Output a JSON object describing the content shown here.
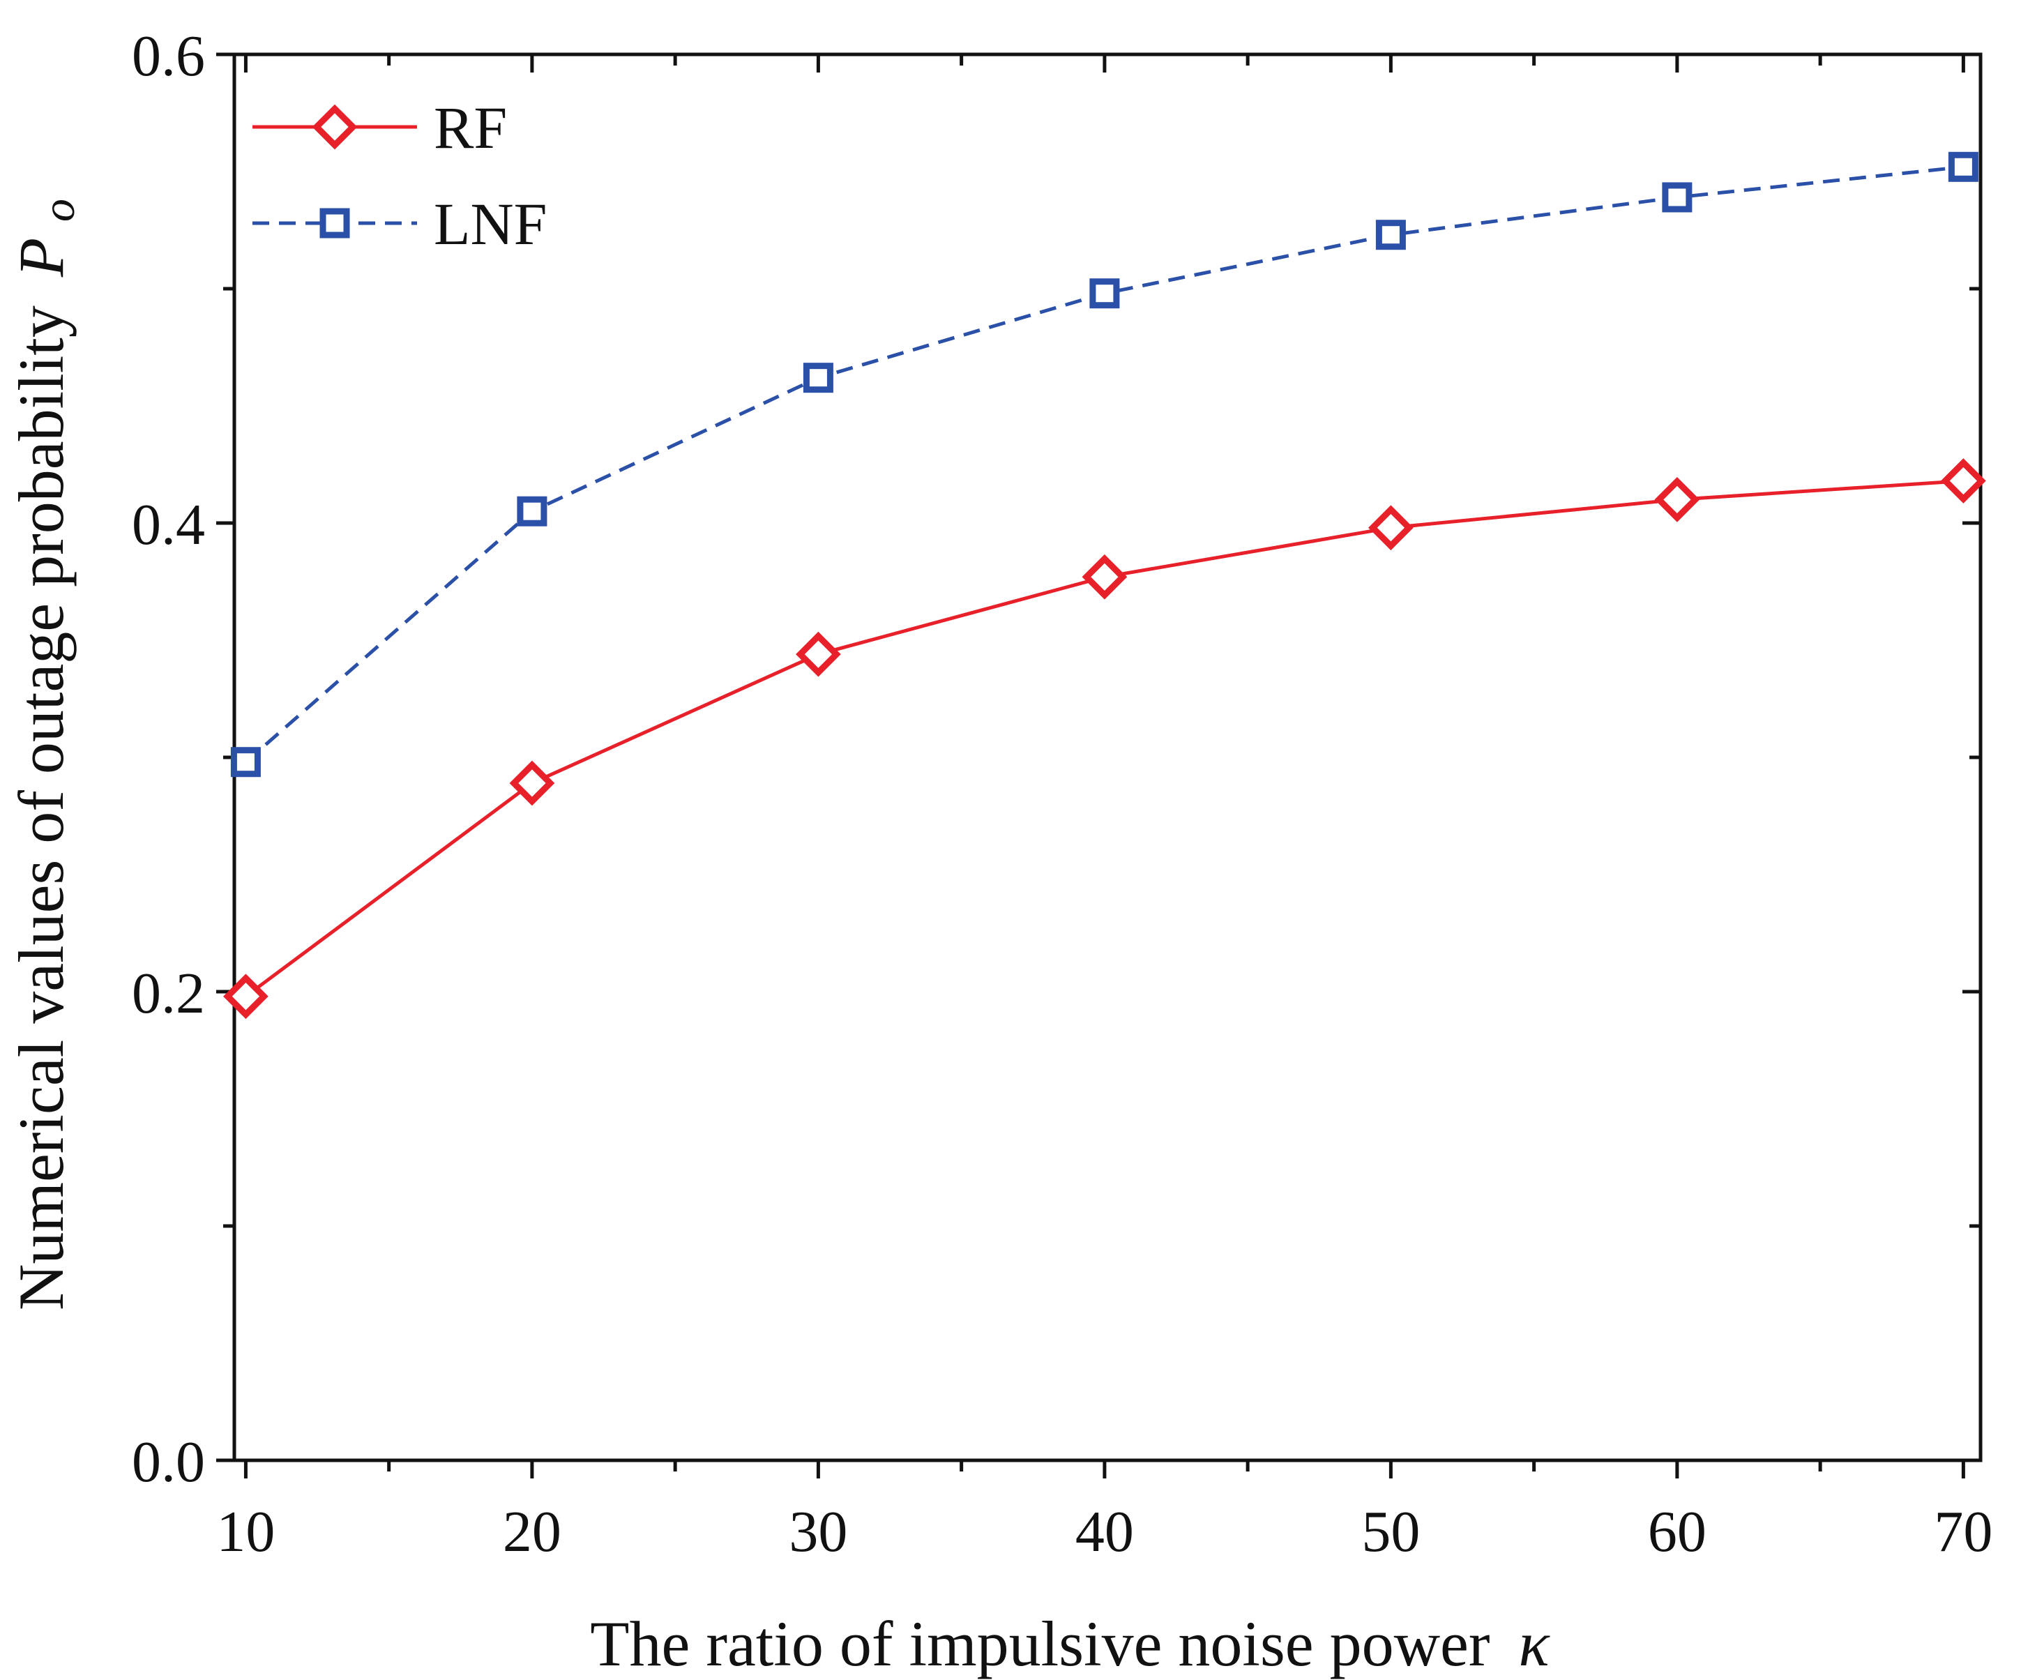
{
  "chart_data": {
    "type": "line",
    "title": "",
    "xlabel": "The ratio of impulsive noise power",
    "xlabel_symbol": "κ",
    "ylabel": "Numerical values of outage probability",
    "ylabel_symbol": "P",
    "ylabel_subscript": "o",
    "xlim": [
      9.6,
      70.6
    ],
    "ylim": [
      0.0,
      0.6
    ],
    "x_ticks": [
      10,
      20,
      30,
      40,
      50,
      60,
      70
    ],
    "x_tick_labels": [
      "10",
      "20",
      "30",
      "40",
      "50",
      "60",
      "70"
    ],
    "x_minor_ticks": [
      15,
      25,
      35,
      45,
      55,
      65
    ],
    "y_ticks": [
      0.0,
      0.2,
      0.4,
      0.6
    ],
    "y_tick_labels": [
      "0.0",
      "0.2",
      "0.4",
      "0.6"
    ],
    "y_minor_ticks": [
      0.1,
      0.3,
      0.5
    ],
    "grid": false,
    "legend_position": "top-left",
    "x": [
      10,
      20,
      30,
      40,
      50,
      60,
      70
    ],
    "series": [
      {
        "name": "RF",
        "values": [
          0.198,
          0.289,
          0.344,
          0.377,
          0.398,
          0.41,
          0.418
        ],
        "color": "#e8202a",
        "line": "solid",
        "marker": "diamond"
      },
      {
        "name": "LNF",
        "values": [
          0.298,
          0.405,
          0.462,
          0.498,
          0.523,
          0.539,
          0.552
        ],
        "color": "#2b50a8",
        "line": "dashed",
        "marker": "square"
      }
    ]
  }
}
